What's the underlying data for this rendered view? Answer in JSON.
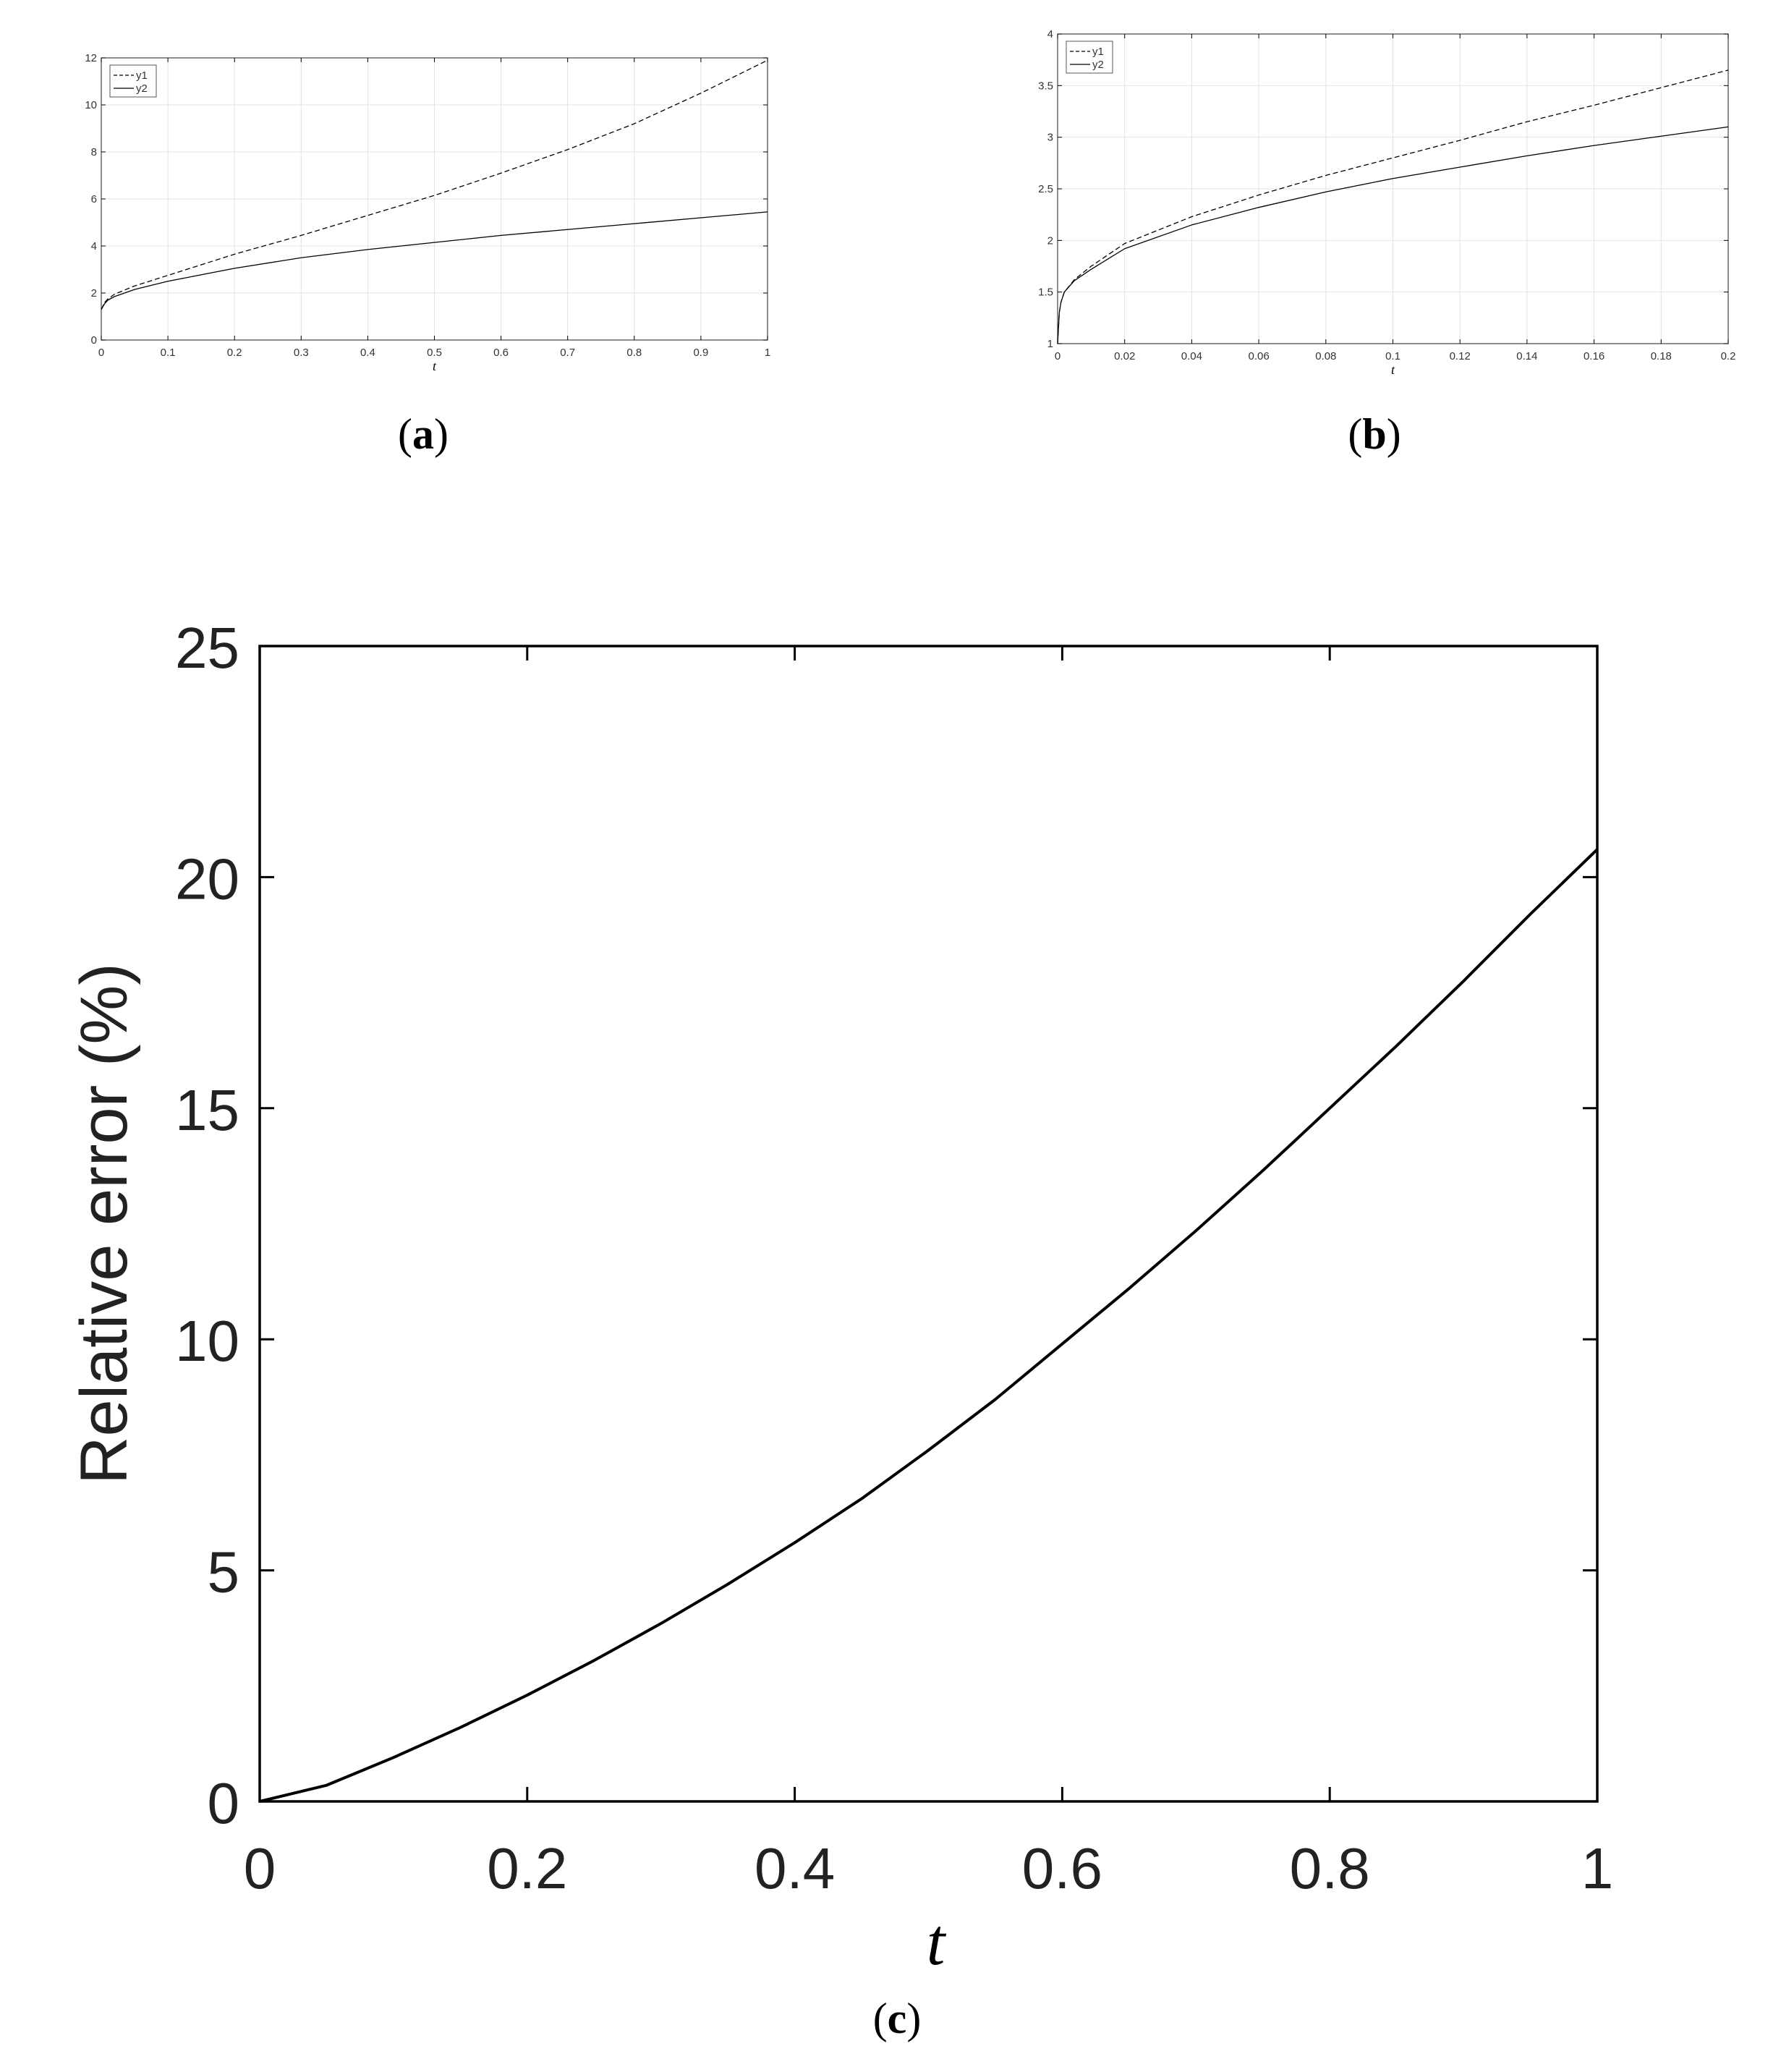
{
  "chart_data": [
    {
      "id": "a",
      "type": "line",
      "caption": "a",
      "xlabel": "t",
      "ylabel": "",
      "xlim": [
        0,
        1
      ],
      "ylim": [
        0,
        12
      ],
      "xticks": [
        "0",
        "0.1",
        "0.2",
        "0.3",
        "0.4",
        "0.5",
        "0.6",
        "0.7",
        "0.8",
        "0.9",
        "1"
      ],
      "yticks": [
        "0",
        "2",
        "4",
        "6",
        "8",
        "10",
        "12"
      ],
      "grid": true,
      "legend_position": "top-left",
      "series": [
        {
          "name": "y1",
          "style": "dashed",
          "x": [
            0,
            0.005,
            0.01,
            0.02,
            0.05,
            0.1,
            0.2,
            0.3,
            0.4,
            0.5,
            0.6,
            0.7,
            0.8,
            0.9,
            1.0
          ],
          "y": [
            1.3,
            1.6,
            1.75,
            1.95,
            2.3,
            2.75,
            3.65,
            4.45,
            5.3,
            6.15,
            7.1,
            8.1,
            9.2,
            10.5,
            11.9
          ]
        },
        {
          "name": "y2",
          "style": "solid",
          "x": [
            0,
            0.005,
            0.01,
            0.02,
            0.05,
            0.1,
            0.2,
            0.3,
            0.4,
            0.5,
            0.6,
            0.7,
            0.8,
            0.9,
            1.0
          ],
          "y": [
            1.3,
            1.55,
            1.7,
            1.85,
            2.15,
            2.5,
            3.05,
            3.5,
            3.85,
            4.15,
            4.45,
            4.7,
            4.95,
            5.2,
            5.45
          ]
        }
      ]
    },
    {
      "id": "b",
      "type": "line",
      "caption": "b",
      "xlabel": "t",
      "ylabel": "",
      "xlim": [
        0,
        0.2
      ],
      "ylim": [
        1,
        4
      ],
      "xticks": [
        "0",
        "0.02",
        "0.04",
        "0.06",
        "0.08",
        "0.1",
        "0.12",
        "0.14",
        "0.16",
        "0.18",
        "0.2"
      ],
      "yticks": [
        "1",
        "1.5",
        "2",
        "2.5",
        "3",
        "3.5",
        "4"
      ],
      "grid": true,
      "legend_position": "top-left",
      "series": [
        {
          "name": "y1",
          "style": "dashed",
          "x": [
            0,
            0.0005,
            0.001,
            0.002,
            0.005,
            0.01,
            0.02,
            0.04,
            0.06,
            0.08,
            0.1,
            0.12,
            0.14,
            0.16,
            0.18,
            0.2
          ],
          "y": [
            1.0,
            1.3,
            1.4,
            1.5,
            1.62,
            1.75,
            1.97,
            2.23,
            2.44,
            2.63,
            2.8,
            2.97,
            3.15,
            3.31,
            3.48,
            3.65
          ]
        },
        {
          "name": "y2",
          "style": "solid",
          "x": [
            0,
            0.0005,
            0.001,
            0.002,
            0.005,
            0.01,
            0.02,
            0.04,
            0.06,
            0.08,
            0.1,
            0.12,
            0.14,
            0.16,
            0.18,
            0.2
          ],
          "y": [
            1.0,
            1.3,
            1.4,
            1.5,
            1.61,
            1.72,
            1.92,
            2.15,
            2.32,
            2.47,
            2.6,
            2.71,
            2.82,
            2.92,
            3.01,
            3.1
          ]
        }
      ]
    },
    {
      "id": "c",
      "type": "line",
      "caption": "c",
      "xlabel": "t",
      "ylabel": "Relative error (%)",
      "xlim": [
        0,
        1
      ],
      "ylim": [
        0,
        25
      ],
      "xticks": [
        "0",
        "0.2",
        "0.4",
        "0.6",
        "0.8",
        "1"
      ],
      "yticks": [
        "0",
        "5",
        "10",
        "15",
        "20",
        "25"
      ],
      "grid": false,
      "series": [
        {
          "style": "solid",
          "x": [
            0,
            0.05,
            0.1,
            0.15,
            0.2,
            0.25,
            0.3,
            0.35,
            0.4,
            0.45,
            0.5,
            0.55,
            0.6,
            0.65,
            0.7,
            0.75,
            0.8,
            0.85,
            0.9,
            0.95,
            1.0
          ],
          "y": [
            0,
            0.35,
            0.95,
            1.6,
            2.3,
            3.05,
            3.85,
            4.7,
            5.6,
            6.55,
            7.6,
            8.7,
            9.9,
            11.1,
            12.35,
            13.65,
            15.0,
            16.35,
            17.75,
            19.2,
            20.6
          ]
        }
      ]
    }
  ]
}
